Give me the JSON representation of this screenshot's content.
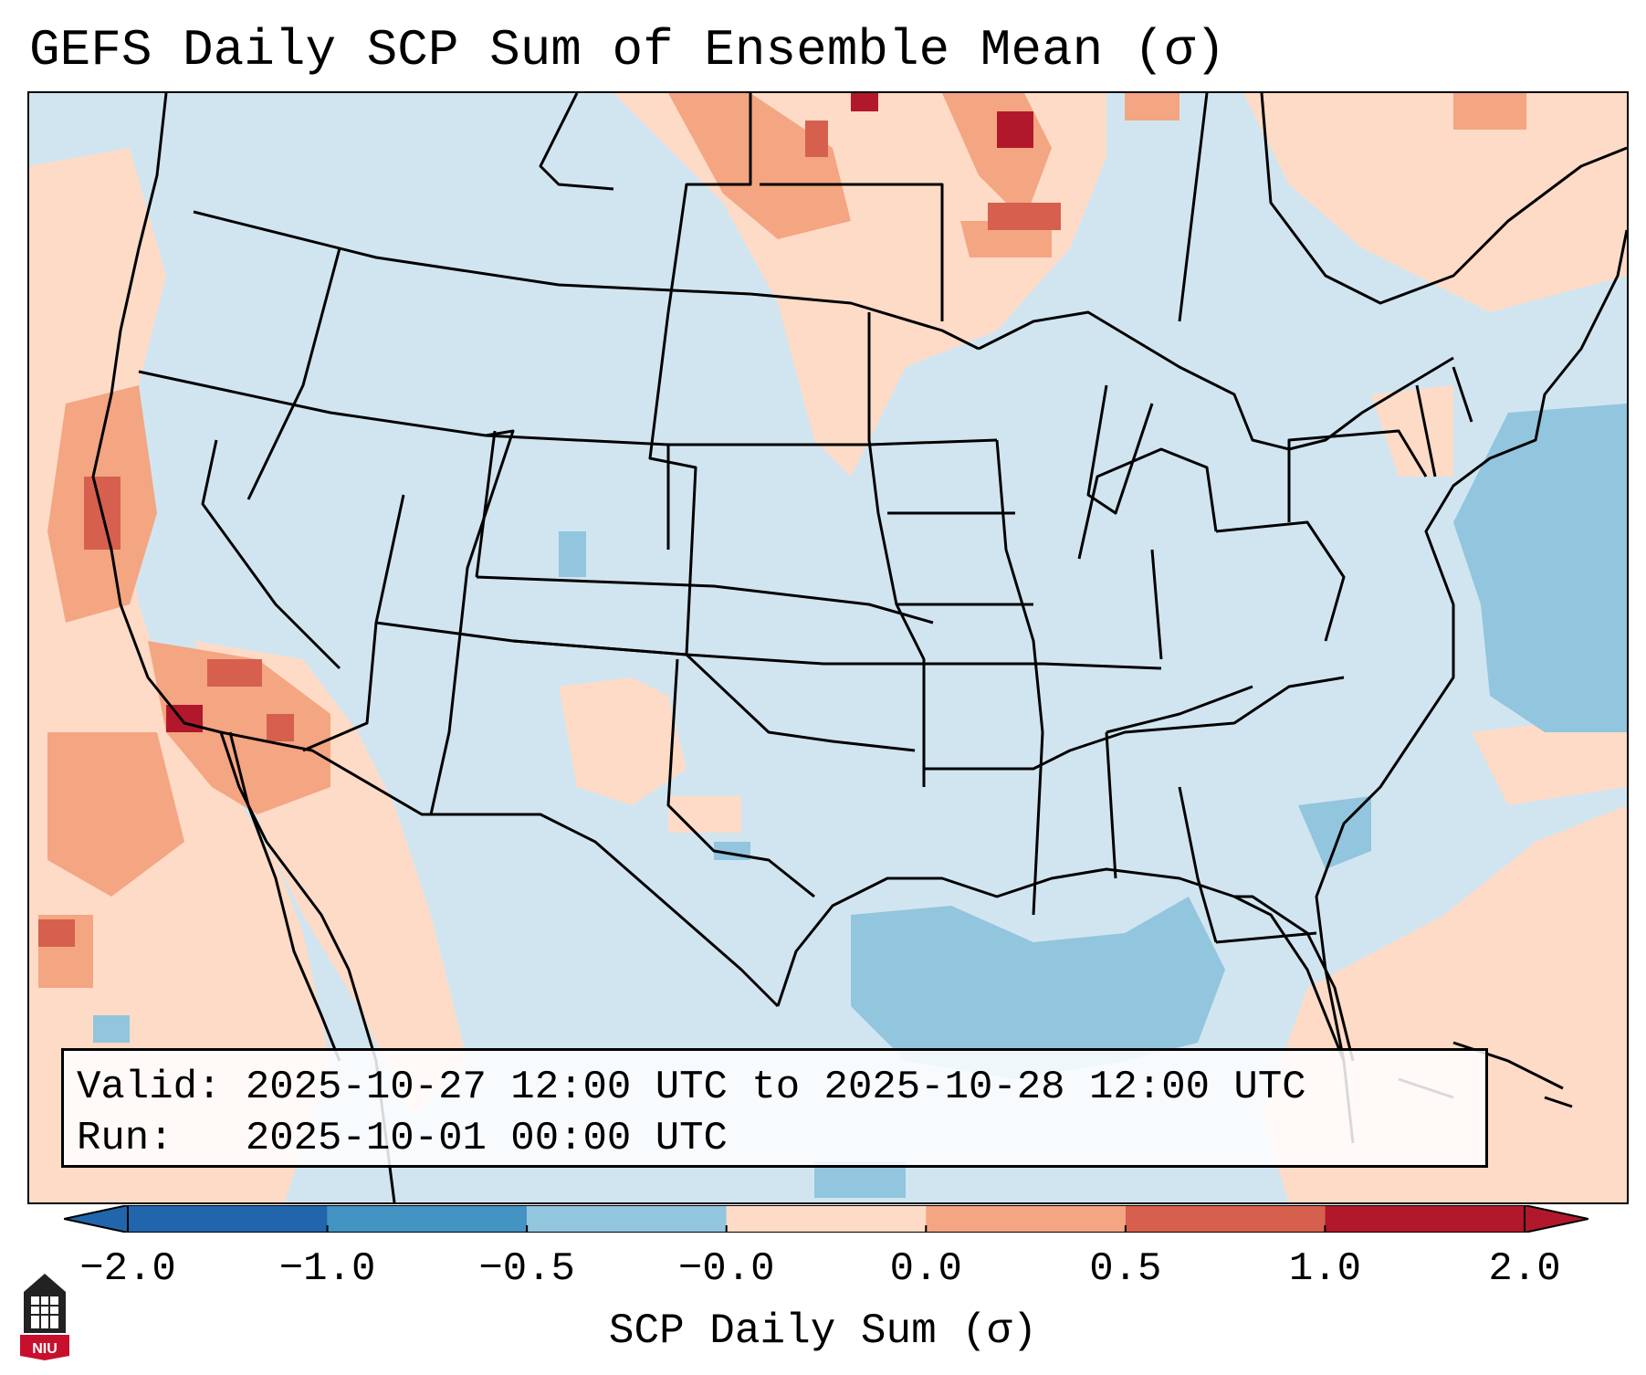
{
  "title": "GEFS Daily SCP Sum of Ensemble Mean (σ)",
  "info": {
    "valid_label": "Valid:",
    "valid_value": "2025-10-27 12:00 UTC to 2025-10-28 12:00 UTC",
    "run_label": "Run:",
    "run_value": "2025-10-01 00:00 UTC"
  },
  "colorbar": {
    "label": "SCP Daily Sum (σ)",
    "ticks": [
      "−2.0",
      "−1.0",
      "−0.5",
      "−0.0",
      "0.0",
      "0.5",
      "1.0",
      "2.0"
    ],
    "colors": [
      "#2166ac",
      "#4393c3",
      "#92c5de",
      "#d1e5f0",
      "#fddbc7",
      "#f4a582",
      "#d6604d",
      "#b2182b"
    ]
  },
  "logo": {
    "icon": "niu-logo-icon",
    "text": "NIU"
  },
  "colors": {
    "background": "#d1e5f0",
    "light_blue": "#92c5de",
    "light_red": "#fddbc7",
    "mid_red": "#f4a582",
    "red": "#d6604d",
    "dark_red": "#b2182b"
  }
}
